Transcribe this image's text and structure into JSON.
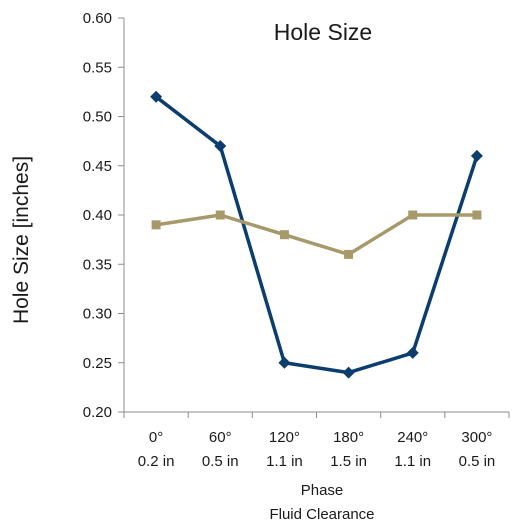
{
  "chart_data": {
    "type": "line",
    "title": "Hole Size",
    "ylabel": "Hole Size [inches]",
    "xlabel": [
      "Phase",
      "Fluid Clearance"
    ],
    "categories": [
      [
        "0°",
        "0.2 in"
      ],
      [
        "60°",
        "0.5 in"
      ],
      [
        "120°",
        "1.1 in"
      ],
      [
        "180°",
        "1.5 in"
      ],
      [
        "240°",
        "1.1 in"
      ],
      [
        "300°",
        "0.5 in"
      ]
    ],
    "ylim": [
      0.2,
      0.6
    ],
    "yticks": [
      "0.20",
      "0.25",
      "0.30",
      "0.35",
      "0.40",
      "0.45",
      "0.50",
      "0.55",
      "0.60"
    ],
    "grid": false,
    "legend": "none",
    "series": [
      {
        "values": [
          0.52,
          0.47,
          0.25,
          0.24,
          0.26,
          0.46
        ],
        "color": "#0b3e6f",
        "marker": "diamond"
      },
      {
        "values": [
          0.39,
          0.4,
          0.38,
          0.36,
          0.4,
          0.4
        ],
        "color": "#a8996a",
        "marker": "square"
      }
    ]
  }
}
